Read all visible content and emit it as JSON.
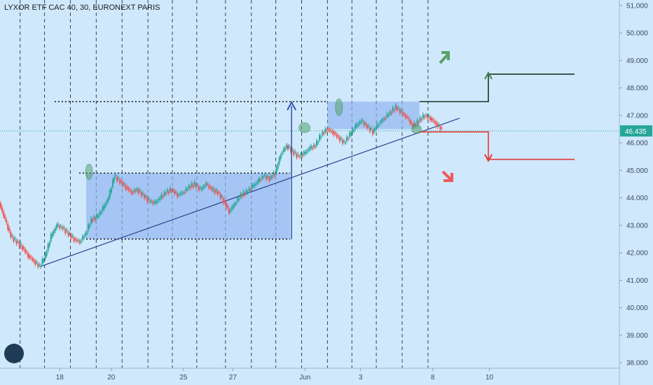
{
  "chart_data": {
    "type": "candlestick",
    "title": "LYXOR ETF CAC 40, 30, EURONEXT PARIS",
    "x_ticks": [
      "18",
      "20",
      "25",
      "27",
      "Jun",
      "3",
      "8",
      "10"
    ],
    "y_ticks": [
      "38.000",
      "39.000",
      "40.000",
      "41.000",
      "42.000",
      "43.000",
      "44.000",
      "45.000",
      "46.000",
      "47.000",
      "48.000",
      "49.000",
      "50.000",
      "51.000"
    ],
    "ylim": [
      37.8,
      51.2
    ],
    "current_price": 46.435,
    "current_price_label": "46.435",
    "price_path": [
      [
        0,
        43.8
      ],
      [
        4,
        43.2
      ],
      [
        8,
        42.6
      ],
      [
        12,
        42.4
      ],
      [
        16,
        42.2
      ],
      [
        20,
        41.9
      ],
      [
        24,
        41.7
      ],
      [
        28,
        41.5
      ],
      [
        32,
        41.9
      ],
      [
        36,
        42.6
      ],
      [
        40,
        43.0
      ],
      [
        44,
        42.9
      ],
      [
        48,
        42.7
      ],
      [
        52,
        42.5
      ],
      [
        56,
        42.4
      ],
      [
        60,
        42.7
      ],
      [
        64,
        43.2
      ],
      [
        68,
        43.3
      ],
      [
        72,
        43.6
      ],
      [
        76,
        44.0
      ],
      [
        80,
        44.8
      ],
      [
        84,
        44.6
      ],
      [
        88,
        44.4
      ],
      [
        92,
        44.2
      ],
      [
        96,
        44.3
      ],
      [
        100,
        44.1
      ],
      [
        104,
        43.9
      ],
      [
        108,
        43.8
      ],
      [
        112,
        44.0
      ],
      [
        116,
        44.2
      ],
      [
        120,
        44.3
      ],
      [
        124,
        44.1
      ],
      [
        128,
        44.2
      ],
      [
        132,
        44.4
      ],
      [
        136,
        44.5
      ],
      [
        140,
        44.3
      ],
      [
        144,
        44.5
      ],
      [
        148,
        44.3
      ],
      [
        152,
        44.2
      ],
      [
        156,
        43.9
      ],
      [
        160,
        43.5
      ],
      [
        164,
        43.8
      ],
      [
        168,
        44.1
      ],
      [
        172,
        44.2
      ],
      [
        176,
        44.4
      ],
      [
        180,
        44.6
      ],
      [
        184,
        44.8
      ],
      [
        188,
        44.7
      ],
      [
        192,
        44.9
      ],
      [
        196,
        45.6
      ],
      [
        200,
        45.9
      ],
      [
        204,
        45.7
      ],
      [
        208,
        45.5
      ],
      [
        212,
        45.6
      ],
      [
        216,
        45.8
      ],
      [
        220,
        45.9
      ],
      [
        224,
        46.3
      ],
      [
        228,
        46.5
      ],
      [
        232,
        46.4
      ],
      [
        236,
        46.2
      ],
      [
        240,
        46.0
      ],
      [
        244,
        46.3
      ],
      [
        248,
        46.6
      ],
      [
        252,
        46.8
      ],
      [
        256,
        46.6
      ],
      [
        260,
        46.4
      ],
      [
        264,
        46.7
      ],
      [
        268,
        46.9
      ],
      [
        272,
        47.1
      ],
      [
        276,
        47.3
      ],
      [
        280,
        47.1
      ],
      [
        284,
        46.9
      ],
      [
        288,
        46.6
      ],
      [
        292,
        46.8
      ],
      [
        296,
        47.0
      ],
      [
        300,
        46.9
      ],
      [
        304,
        46.7
      ],
      [
        308,
        46.5
      ]
    ],
    "range_box_1": {
      "x_start": 60,
      "x_end": 202,
      "y_low": 42.5,
      "y_high": 44.9
    },
    "range_box_2": {
      "x_start": 228,
      "x_end": 292,
      "y_low": 46.5,
      "y_high": 47.5
    },
    "trendline": {
      "from": [
        28,
        41.5
      ],
      "to": [
        320,
        46.9
      ]
    },
    "breakout_target": {
      "x": 202,
      "from": 42.5,
      "to": 47.5
    },
    "bull_scenario": {
      "x_start": 292,
      "x_mid": 340,
      "x_end": 400,
      "level_1": 47.5,
      "level_2": 48.5
    },
    "bear_scenario": {
      "x_start": 292,
      "x_mid": 340,
      "x_end": 400,
      "level_1": 46.4,
      "level_2": 45.4
    },
    "x_tick_positions": [
      58,
      108,
      178,
      226,
      296,
      350,
      420,
      475
    ],
    "colors": {
      "up": "#26a69a",
      "down": "#ef5350",
      "box": "#8fb3f0",
      "trend": "#2d3f8f",
      "bull": "#3e8a4c",
      "bear": "#e53935",
      "arrow_blue": "#3552a8",
      "price_line": "#26a69a"
    }
  }
}
